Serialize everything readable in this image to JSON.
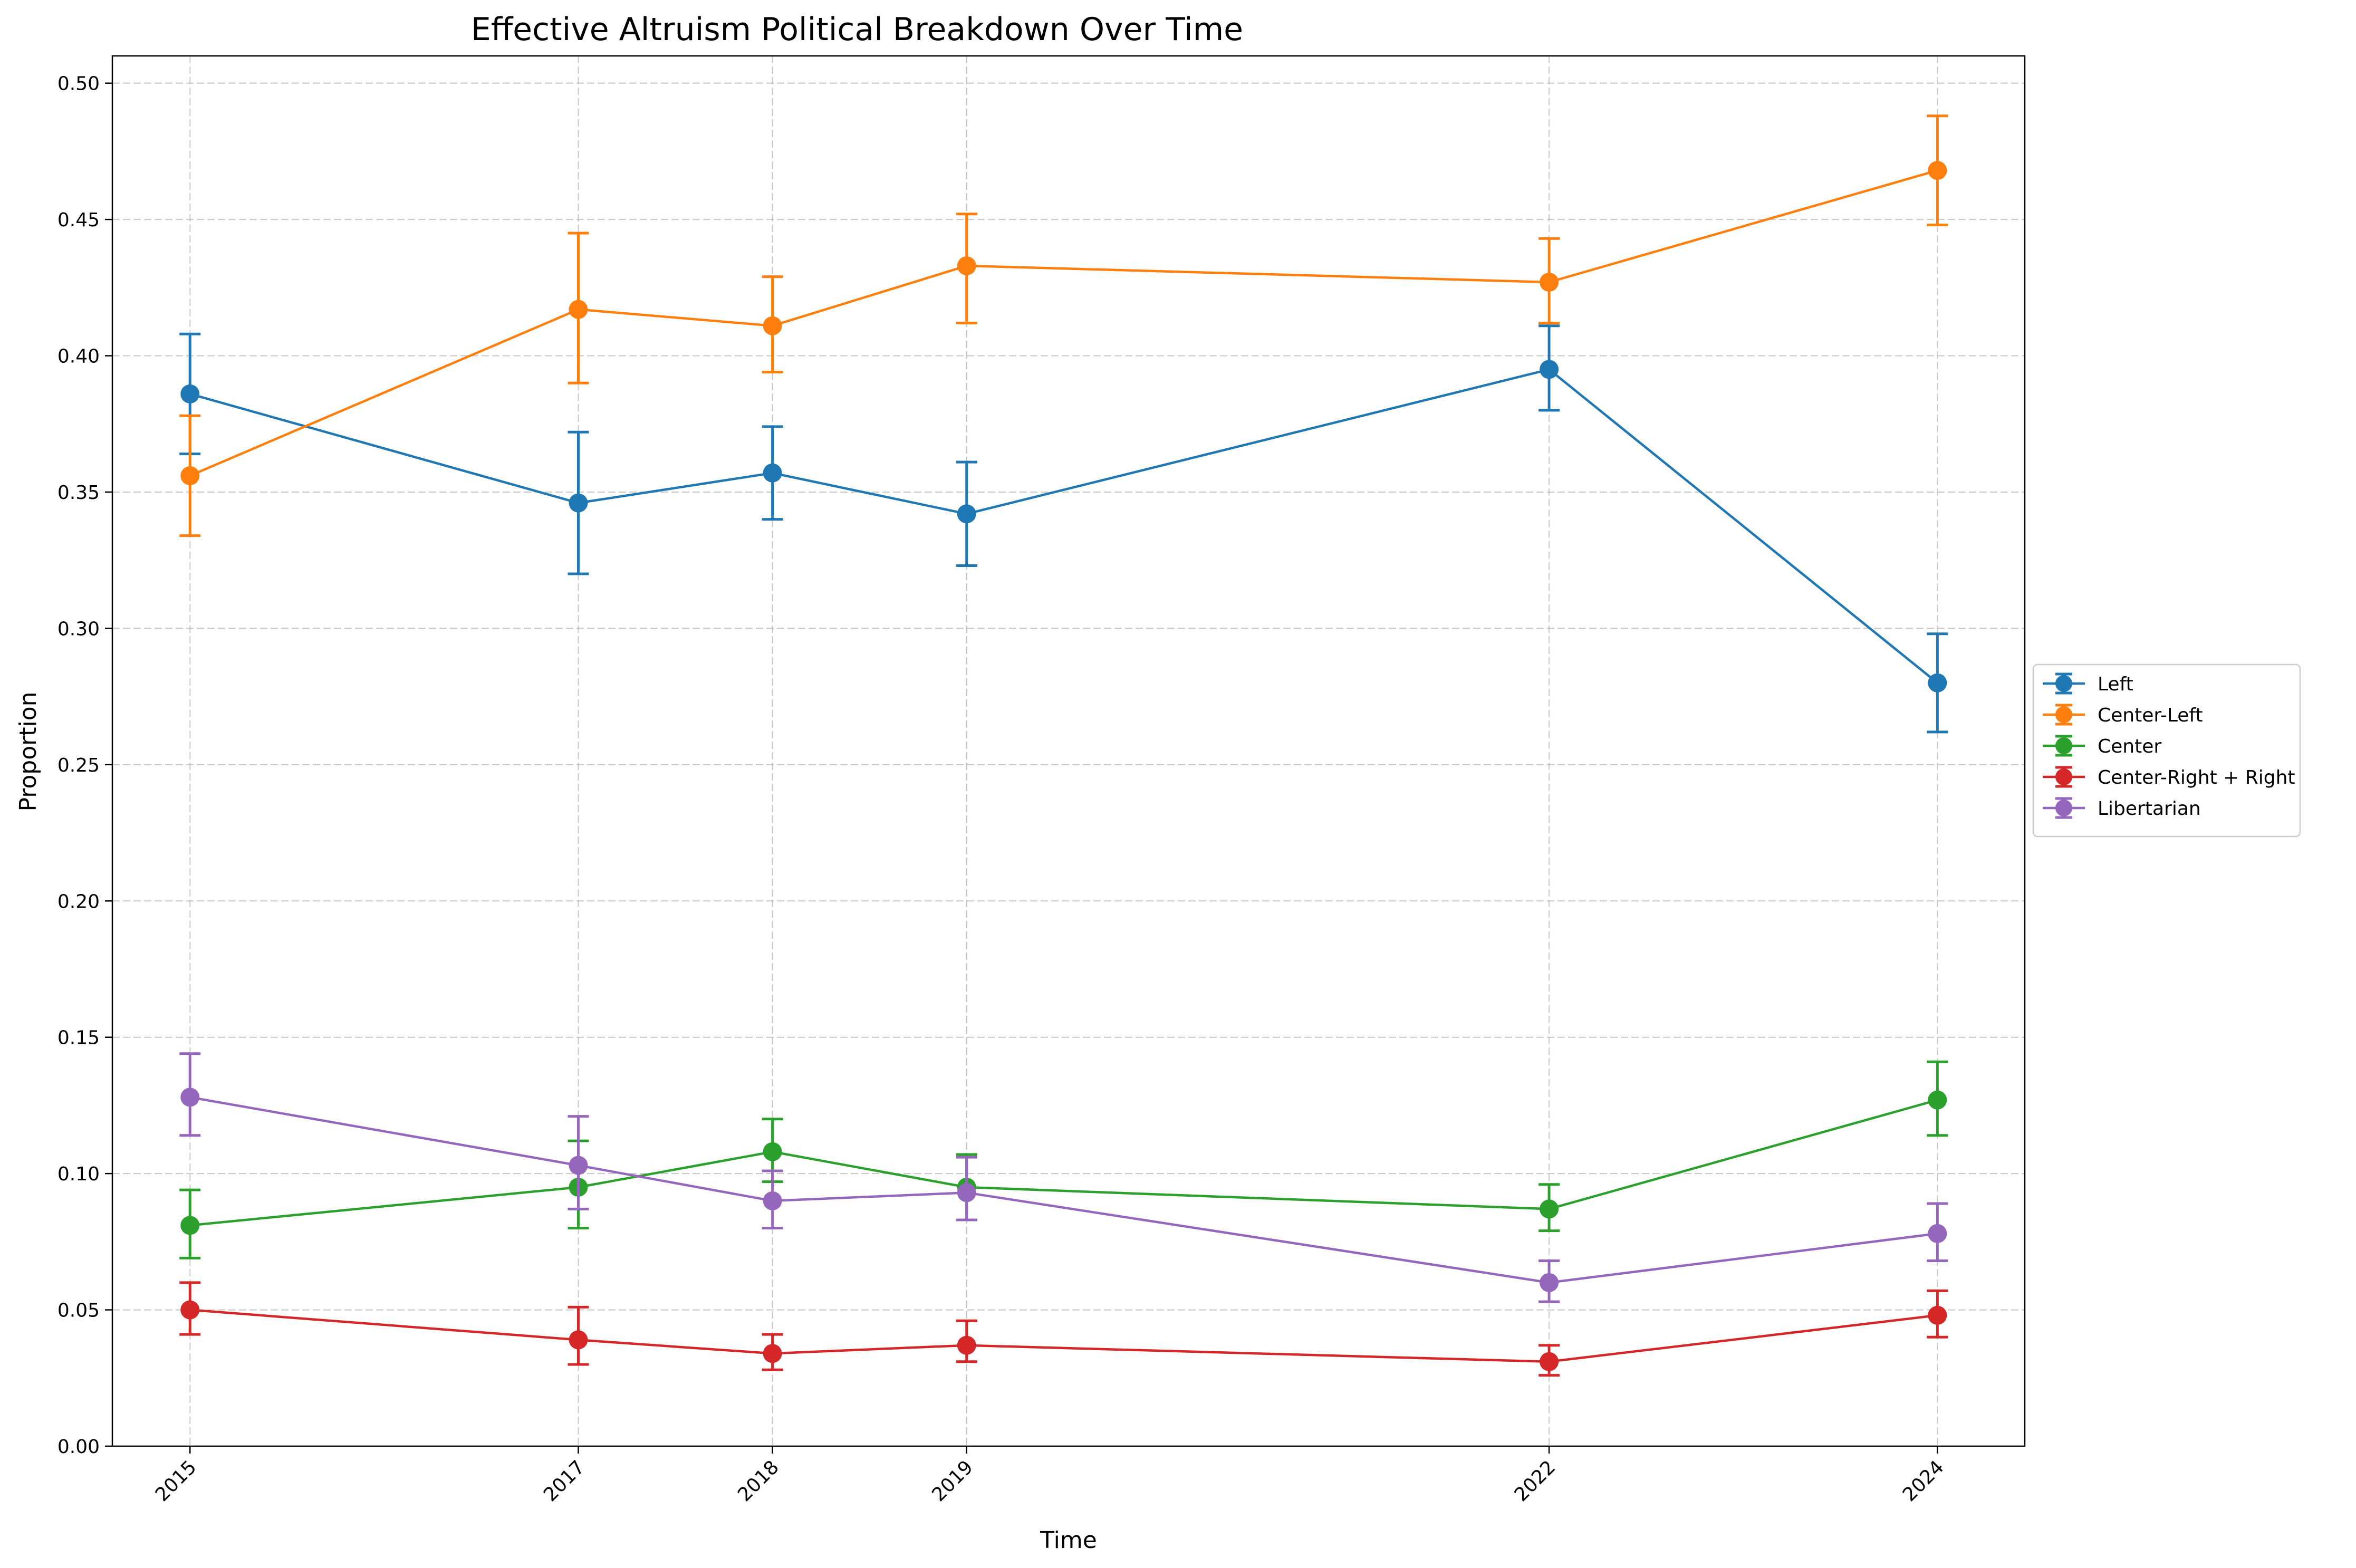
{
  "chart_data": {
    "type": "line",
    "title": "Effective Altruism Political Breakdown Over Time",
    "xlabel": "Time",
    "ylabel": "Proportion",
    "x": [
      2015,
      2017,
      2018,
      2019,
      2022,
      2024
    ],
    "x_tick_labels": [
      "2015",
      "2017",
      "2018",
      "2019",
      "2022",
      "2024"
    ],
    "xlim": [
      2014.6,
      2024.45
    ],
    "ylim": [
      0,
      0.51
    ],
    "y_ticks": [
      0.0,
      0.05,
      0.1,
      0.15,
      0.2,
      0.25,
      0.3,
      0.35,
      0.4,
      0.45,
      0.5
    ],
    "y_tick_labels": [
      "0.00",
      "0.05",
      "0.10",
      "0.15",
      "0.20",
      "0.25",
      "0.30",
      "0.35",
      "0.40",
      "0.45",
      "0.50"
    ],
    "grid": true,
    "error_bars": true,
    "legend_position": "center-right outside",
    "series": [
      {
        "name": "Left",
        "color": "#1f77b4",
        "values": [
          0.386,
          0.346,
          0.357,
          0.342,
          0.395,
          0.28
        ],
        "err_low": [
          0.364,
          0.32,
          0.34,
          0.323,
          0.38,
          0.262
        ],
        "err_high": [
          0.408,
          0.372,
          0.374,
          0.361,
          0.411,
          0.298
        ]
      },
      {
        "name": "Center-Left",
        "color": "#ff7f0e",
        "values": [
          0.356,
          0.417,
          0.411,
          0.433,
          0.427,
          0.468
        ],
        "err_low": [
          0.334,
          0.39,
          0.394,
          0.412,
          0.412,
          0.448
        ],
        "err_high": [
          0.378,
          0.445,
          0.429,
          0.452,
          0.443,
          0.488
        ]
      },
      {
        "name": "Center",
        "color": "#2ca02c",
        "values": [
          0.081,
          0.095,
          0.108,
          0.095,
          0.087,
          0.127
        ],
        "err_low": [
          0.069,
          0.08,
          0.097,
          0.083,
          0.079,
          0.114
        ],
        "err_high": [
          0.094,
          0.112,
          0.12,
          0.107,
          0.096,
          0.141
        ]
      },
      {
        "name": "Center-Right + Right",
        "color": "#d62728",
        "values": [
          0.05,
          0.039,
          0.034,
          0.037,
          0.031,
          0.048
        ],
        "err_low": [
          0.041,
          0.03,
          0.028,
          0.031,
          0.026,
          0.04
        ],
        "err_high": [
          0.06,
          0.051,
          0.041,
          0.046,
          0.037,
          0.057
        ]
      },
      {
        "name": "Libertarian",
        "color": "#9467bd",
        "values": [
          0.128,
          0.103,
          0.09,
          0.093,
          0.06,
          0.078
        ],
        "err_low": [
          0.114,
          0.087,
          0.08,
          0.083,
          0.053,
          0.068
        ],
        "err_high": [
          0.144,
          0.121,
          0.101,
          0.106,
          0.068,
          0.089
        ]
      }
    ]
  }
}
